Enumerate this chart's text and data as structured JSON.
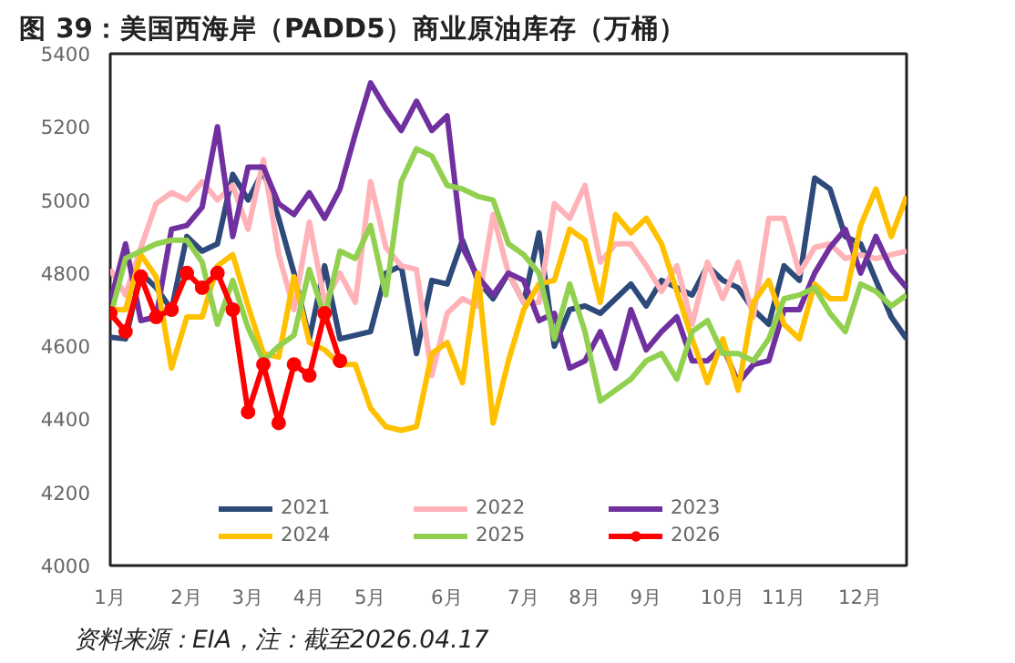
{
  "chart_data": {
    "type": "line",
    "title": "图 39：美国西海岸（PADD5）商业原油库存（万桶）",
    "annotations": [
      "资料来源：EIA，注：截至2026.04.17"
    ],
    "categories": [
      "1月",
      null,
      null,
      null,
      null,
      "2月",
      null,
      null,
      null,
      "3月",
      null,
      null,
      null,
      "4月",
      null,
      null,
      null,
      "5月",
      null,
      null,
      null,
      null,
      "6月",
      null,
      null,
      null,
      null,
      "7月",
      null,
      null,
      null,
      "8月",
      null,
      null,
      null,
      "9月",
      null,
      null,
      null,
      null,
      "10月",
      null,
      null,
      null,
      "11月",
      null,
      null,
      null,
      null,
      "12月",
      null,
      null,
      null
    ],
    "ylim": [
      4000,
      5400
    ],
    "yticks": [
      4000,
      4200,
      4400,
      4600,
      4800,
      5000,
      5200,
      5400
    ],
    "grid": false,
    "legend": "bottom",
    "line_style": "solid",
    "series": [
      {
        "name": "2021",
        "color": "#2e4a7a",
        "values": [
          4625,
          4620,
          4800,
          4760,
          4700,
          4900,
          4860,
          4880,
          5070,
          5000,
          5080,
          4950,
          4800,
          4620,
          4820,
          4620,
          4630,
          4640,
          4800,
          4820,
          4580,
          4780,
          4770,
          4890,
          4780,
          4730,
          4800,
          4720,
          4910,
          4600,
          4700,
          4710,
          4690,
          4730,
          4770,
          4710,
          4780,
          4760,
          4740,
          4820,
          4780,
          4760,
          4700,
          4660,
          4820,
          4780,
          5060,
          5030,
          4900,
          4880,
          4780,
          4680,
          4620
        ]
      },
      {
        "name": "2022",
        "color": "#ffb3b8",
        "values": [
          4810,
          4740,
          4870,
          4990,
          5020,
          5000,
          5050,
          5000,
          5040,
          4920,
          5110,
          4850,
          4700,
          4940,
          4720,
          4800,
          4720,
          5050,
          4870,
          4820,
          4810,
          4520,
          4690,
          4730,
          4710,
          4960,
          4800,
          4720,
          4720,
          4990,
          4950,
          5040,
          4830,
          4880,
          4880,
          4820,
          4750,
          4820,
          4660,
          4830,
          4730,
          4830,
          4680,
          4950,
          4950,
          4800,
          4870,
          4880,
          4840,
          4850,
          4840,
          4850,
          4860
        ]
      },
      {
        "name": "2023",
        "color": "#7030a0",
        "values": [
          4720,
          4880,
          4670,
          4680,
          4920,
          4930,
          4980,
          5200,
          4900,
          5090,
          5090,
          4990,
          4960,
          5020,
          4950,
          5030,
          5180,
          5320,
          5250,
          5190,
          5270,
          5190,
          5230,
          4870,
          4790,
          4740,
          4800,
          4780,
          4670,
          4690,
          4540,
          4560,
          4640,
          4540,
          4700,
          4590,
          4640,
          4680,
          4560,
          4560,
          4600,
          4500,
          4550,
          4560,
          4700,
          4700,
          4800,
          4870,
          4920,
          4800,
          4900,
          4810,
          4760
        ]
      },
      {
        "name": "2024",
        "color": "#ffc000",
        "values": [
          4700,
          4700,
          4850,
          4790,
          4540,
          4680,
          4680,
          4820,
          4850,
          4710,
          4580,
          4570,
          4790,
          4610,
          4590,
          4550,
          4550,
          4430,
          4380,
          4370,
          4380,
          4580,
          4610,
          4500,
          4800,
          4390,
          4560,
          4700,
          4770,
          4780,
          4920,
          4890,
          4720,
          4960,
          4910,
          4950,
          4880,
          4750,
          4620,
          4500,
          4620,
          4480,
          4720,
          4780,
          4660,
          4620,
          4770,
          4730,
          4730,
          4930,
          5030,
          4900,
          5010
        ]
      },
      {
        "name": "2025",
        "color": "#92d050",
        "values": [
          4680,
          4840,
          4860,
          4880,
          4890,
          4890,
          4830,
          4660,
          4780,
          4650,
          4560,
          4600,
          4630,
          4810,
          4680,
          4860,
          4840,
          4930,
          4740,
          5050,
          5140,
          5120,
          5040,
          5030,
          5010,
          5000,
          4880,
          4850,
          4800,
          4620,
          4770,
          4640,
          4450,
          4480,
          4510,
          4560,
          4580,
          4510,
          4640,
          4670,
          4580,
          4580,
          4560,
          4620,
          4730,
          4740,
          4760,
          4690,
          4640,
          4770,
          4750,
          4710,
          4740
        ]
      },
      {
        "name": "2026",
        "color": "#ff0000",
        "marker": "circle",
        "values": [
          4690,
          4640,
          4790,
          4680,
          4700,
          4800,
          4760,
          4800,
          4700,
          4420,
          4550,
          4390,
          4550,
          4520,
          4690,
          4560,
          null,
          null,
          null,
          null,
          null,
          null,
          null,
          null,
          null,
          null,
          null,
          null,
          null,
          null,
          null,
          null,
          null,
          null,
          null,
          null,
          null,
          null,
          null,
          null,
          null,
          null,
          null,
          null,
          null,
          null,
          null,
          null,
          null,
          null,
          null,
          null,
          null
        ]
      }
    ]
  }
}
